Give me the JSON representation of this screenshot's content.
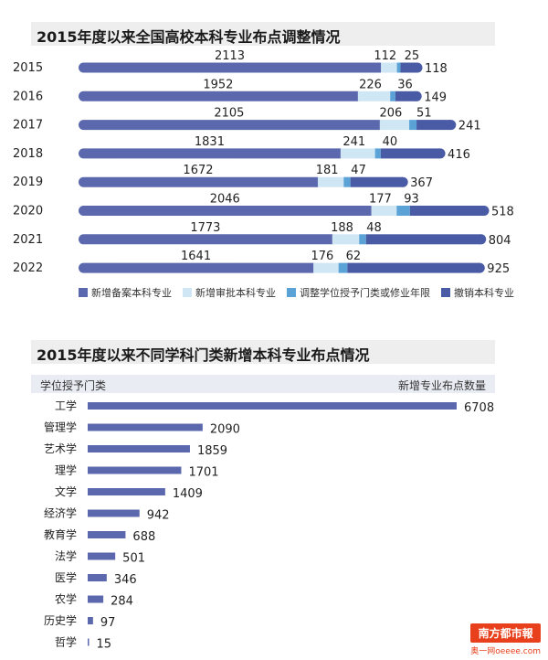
{
  "chart1": {
    "title": "2015年度以来全国高校本科专业布点调整情况",
    "legend": [
      {
        "name": "新增备案本科专业",
        "color": "#5b68ad"
      },
      {
        "name": "新增审批本科专业",
        "color": "#cfe6f5"
      },
      {
        "name": "调整学位授予门类或修业年限",
        "color": "#5ba3d6"
      },
      {
        "name": "撤销本科专业",
        "color": "#4a5ba6"
      }
    ]
  },
  "chart2": {
    "title": "2015年度以来不同学科门类新增本科专业布点情况",
    "col_left": "学位授予门类",
    "col_right": "新增专业布点数量",
    "bar_color": "#5b68ad"
  },
  "logo": {
    "top": "南方都市報",
    "bottom": "奥一网oeeee.com"
  },
  "chart_data": [
    {
      "type": "bar",
      "orientation": "horizontal",
      "stacked": true,
      "title": "2015年度以来全国高校本科专业布点调整情况",
      "categories": [
        "2015",
        "2016",
        "2017",
        "2018",
        "2019",
        "2020",
        "2021",
        "2022"
      ],
      "series": [
        {
          "name": "新增备案本科专业",
          "values": [
            2113,
            1952,
            2105,
            1831,
            1672,
            2046,
            1773,
            1641
          ]
        },
        {
          "name": "新增审批本科专业",
          "values": [
            112,
            226,
            206,
            241,
            181,
            177,
            188,
            176
          ]
        },
        {
          "name": "调整学位授予门类或修业年限",
          "values": [
            25,
            36,
            51,
            40,
            47,
            93,
            48,
            62
          ]
        },
        {
          "name": "撤销本科专业",
          "values": [
            118,
            149,
            241,
            416,
            367,
            518,
            804,
            925
          ]
        }
      ],
      "legend_position": "bottom"
    },
    {
      "type": "bar",
      "orientation": "horizontal",
      "title": "2015年度以来不同学科门类新增本科专业布点情况",
      "xlabel": "新增专业布点数量",
      "ylabel": "学位授予门类",
      "categories": [
        "工学",
        "管理学",
        "艺术学",
        "理学",
        "文学",
        "经济学",
        "教育学",
        "法学",
        "医学",
        "农学",
        "历史学",
        "哲学"
      ],
      "values": [
        6708,
        2090,
        1859,
        1701,
        1409,
        942,
        688,
        501,
        346,
        284,
        97,
        15
      ]
    }
  ]
}
